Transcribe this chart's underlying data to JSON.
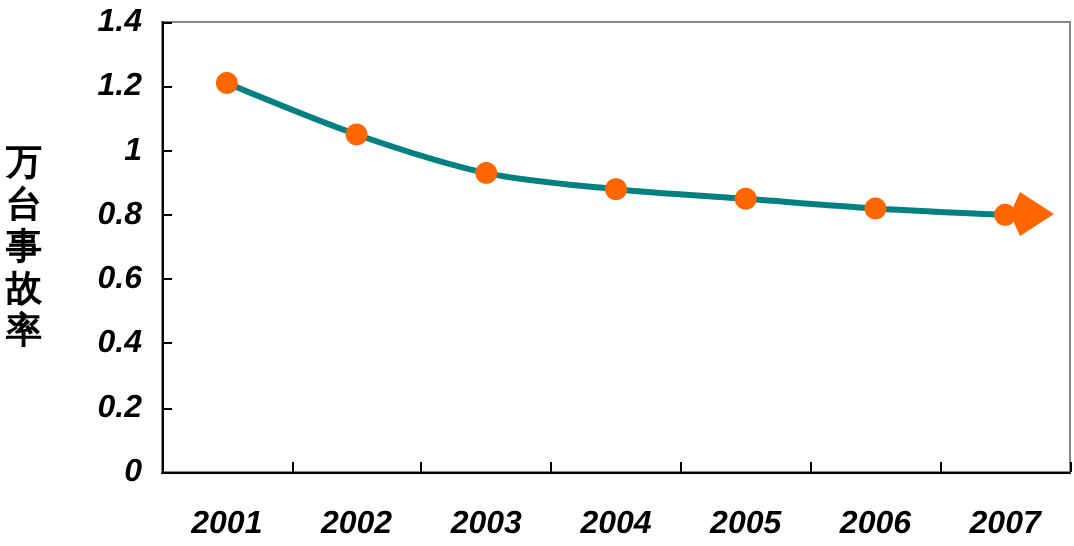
{
  "chart_data": {
    "type": "line",
    "ylabel": "万台事故率",
    "categories": [
      "2001",
      "2002",
      "2003",
      "2004",
      "2005",
      "2006",
      "2007"
    ],
    "series": [
      {
        "color": "#008080",
        "colors": [
          "#ff6600",
          "#ff6600",
          "#ff6600",
          "#ff6600",
          "#ff6600",
          "#ff6600",
          "#ff6600"
        ],
        "values": [
          1.21,
          1.05,
          0.93,
          0.88,
          0.85,
          0.82,
          0.8
        ]
      }
    ],
    "ylim": [
      0,
      1.4
    ],
    "yticks": [
      0,
      0.2,
      0.4,
      0.6,
      0.8,
      1,
      1.2,
      1.4
    ],
    "grid": false,
    "marker": "circle",
    "line_style": "solid"
  }
}
